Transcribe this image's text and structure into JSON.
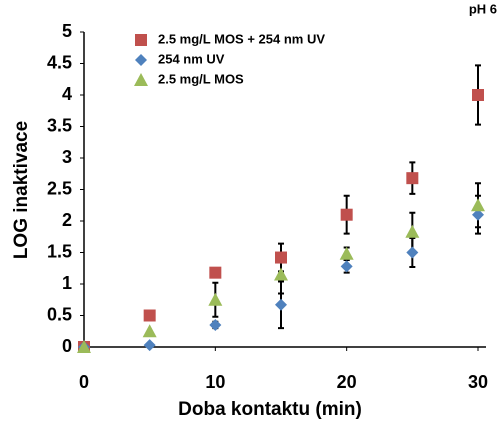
{
  "chart_data": {
    "type": "scatter",
    "title": "pH 6",
    "xlabel": "Doba kontaktu (min)",
    "ylabel": "LOG inaktivace",
    "x": [
      0,
      5,
      10,
      15,
      20,
      25,
      30
    ],
    "xlim": [
      0,
      30
    ],
    "xticks": [
      0,
      10,
      20,
      30
    ],
    "ylim": [
      0,
      5
    ],
    "yticks": [
      0,
      0.5,
      1,
      1.5,
      2,
      2.5,
      3,
      3.5,
      4,
      4.5,
      5
    ],
    "series": [
      {
        "name": "2.5 mg/L MOS + 254 nm UV",
        "color": "#c0504d",
        "marker": "square",
        "values": [
          0,
          0.5,
          1.18,
          1.42,
          2.1,
          2.68,
          4.0
        ],
        "errors": [
          null,
          null,
          null,
          0.22,
          0.3,
          0.25,
          0.47
        ]
      },
      {
        "name": "254 nm UV",
        "color": "#4f81bd",
        "marker": "diamond",
        "values": [
          0,
          0.03,
          0.35,
          0.67,
          1.28,
          1.5,
          2.1
        ],
        "errors": [
          null,
          null,
          0.05,
          0.37,
          0.1,
          0.23,
          0.3
        ]
      },
      {
        "name": "2.5 mg/L MOS",
        "color": "#9bbb59",
        "marker": "triangle",
        "values": [
          0,
          0.25,
          0.75,
          1.15,
          1.48,
          1.83,
          2.25
        ],
        "errors": [
          null,
          null,
          0.27,
          0.3,
          0.1,
          0.3,
          0.35
        ]
      }
    ]
  }
}
